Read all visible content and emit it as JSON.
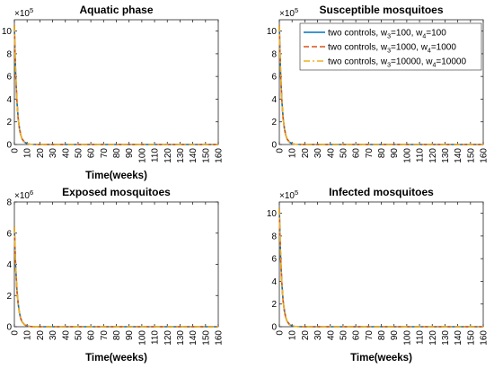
{
  "chart_data": [
    {
      "type": "line",
      "title": "Aquatic phase",
      "xlabel": "Time(weeks)",
      "ylabel": "",
      "xlim": [
        0,
        160
      ],
      "ylim": [
        0,
        11
      ],
      "y_exponent_label": "×10",
      "y_exponent_power": "5",
      "xticks": [
        0,
        10,
        20,
        30,
        40,
        50,
        60,
        70,
        80,
        90,
        100,
        110,
        120,
        130,
        140,
        150,
        160
      ],
      "yticks": [
        0,
        2,
        4,
        6,
        8,
        10
      ],
      "grid": false,
      "legend": null,
      "series": [
        {
          "color": "#0072BD",
          "dash": "solid",
          "x": [
            0,
            0.5,
            1,
            2,
            3,
            4,
            5,
            6,
            8,
            10,
            12,
            15,
            20,
            30,
            160
          ],
          "y": [
            10.5,
            8.2,
            6.3,
            3.8,
            2.3,
            1.4,
            0.85,
            0.5,
            0.2,
            0.08,
            0.03,
            0.01,
            0,
            0,
            0
          ]
        },
        {
          "color": "#D95319",
          "dash": "dashed",
          "x": [
            0,
            0.5,
            1,
            2,
            3,
            4,
            5,
            6,
            8,
            10,
            12,
            15,
            20,
            30,
            160
          ],
          "y": [
            10.5,
            8.2,
            6.3,
            3.8,
            2.3,
            1.4,
            0.85,
            0.5,
            0.2,
            0.08,
            0.03,
            0.01,
            0,
            0,
            0
          ]
        },
        {
          "color": "#EDB120",
          "dash": "dashdot",
          "x": [
            0,
            0.5,
            1,
            2,
            3,
            4,
            5,
            6,
            8,
            10,
            12,
            15,
            20,
            30,
            160
          ],
          "y": [
            10.5,
            8.2,
            6.3,
            3.8,
            2.3,
            1.4,
            0.85,
            0.5,
            0.2,
            0.08,
            0.03,
            0.01,
            0,
            0,
            0
          ]
        }
      ]
    },
    {
      "type": "line",
      "title": "Susceptible mosquitoes",
      "xlabel": "",
      "ylabel": "",
      "xlim": [
        0,
        160
      ],
      "ylim": [
        0,
        11
      ],
      "y_exponent_label": "×10",
      "y_exponent_power": "5",
      "xticks": [
        0,
        10,
        20,
        30,
        40,
        50,
        60,
        70,
        80,
        90,
        100,
        110,
        120,
        130,
        140,
        150,
        160
      ],
      "yticks": [
        0,
        2,
        4,
        6,
        8,
        10
      ],
      "grid": false,
      "legend": "top-right",
      "series": [
        {
          "name": "two controls, w",
          "name_sub1": "3",
          "name_mid": "=100, w",
          "name_sub2": "4",
          "name_end": "=100",
          "color": "#0072BD",
          "dash": "solid",
          "x": [
            0,
            0.5,
            1,
            2,
            3,
            4,
            5,
            6,
            8,
            10,
            12,
            15,
            20,
            30,
            160
          ],
          "y": [
            10.5,
            8.2,
            6.3,
            3.8,
            2.3,
            1.4,
            0.85,
            0.5,
            0.2,
            0.08,
            0.03,
            0.01,
            0,
            0,
            0
          ]
        },
        {
          "name": "two controls, w",
          "name_sub1": "3",
          "name_mid": "=1000, w",
          "name_sub2": "4",
          "name_end": "=1000",
          "color": "#D95319",
          "dash": "dashed",
          "x": [
            0,
            0.5,
            1,
            2,
            3,
            4,
            5,
            6,
            8,
            10,
            12,
            15,
            20,
            30,
            160
          ],
          "y": [
            10.5,
            8.2,
            6.3,
            3.8,
            2.3,
            1.4,
            0.85,
            0.5,
            0.2,
            0.08,
            0.03,
            0.01,
            0,
            0,
            0
          ]
        },
        {
          "name": "two controls, w",
          "name_sub1": "3",
          "name_mid": "=10000, w",
          "name_sub2": "4",
          "name_end": "=10000",
          "color": "#EDB120",
          "dash": "dashdot",
          "x": [
            0,
            0.5,
            1,
            2,
            3,
            4,
            5,
            6,
            8,
            10,
            12,
            15,
            20,
            30,
            160
          ],
          "y": [
            10.5,
            8.2,
            6.3,
            3.8,
            2.3,
            1.4,
            0.85,
            0.5,
            0.2,
            0.08,
            0.03,
            0.01,
            0,
            0,
            0
          ]
        }
      ]
    },
    {
      "type": "line",
      "title": "Exposed mosquitoes",
      "xlabel": "Time(weeks)",
      "ylabel": "",
      "xlim": [
        0,
        160
      ],
      "ylim": [
        0,
        8
      ],
      "y_exponent_label": "×10",
      "y_exponent_power": "6",
      "xticks": [
        0,
        10,
        20,
        30,
        40,
        50,
        60,
        70,
        80,
        90,
        100,
        110,
        120,
        130,
        140,
        150,
        160
      ],
      "yticks": [
        0,
        2,
        4,
        6,
        8
      ],
      "grid": false,
      "legend": null,
      "series": [
        {
          "color": "#0072BD",
          "dash": "solid",
          "x": [
            0,
            0.5,
            1,
            2,
            3,
            4,
            5,
            6,
            8,
            10,
            12,
            15,
            20,
            30,
            160
          ],
          "y": [
            6.4,
            5.0,
            3.9,
            2.35,
            1.45,
            0.88,
            0.53,
            0.32,
            0.12,
            0.05,
            0.02,
            0.005,
            0,
            0,
            0
          ]
        },
        {
          "color": "#D95319",
          "dash": "dashed",
          "x": [
            0,
            0.5,
            1,
            2,
            3,
            4,
            5,
            6,
            8,
            10,
            12,
            15,
            20,
            30,
            160
          ],
          "y": [
            6.4,
            5.0,
            3.9,
            2.35,
            1.45,
            0.88,
            0.53,
            0.32,
            0.12,
            0.05,
            0.02,
            0.005,
            0,
            0,
            0
          ]
        },
        {
          "color": "#EDB120",
          "dash": "dashdot",
          "x": [
            0,
            0.5,
            1,
            2,
            3,
            4,
            5,
            6,
            8,
            10,
            12,
            15,
            20,
            30,
            160
          ],
          "y": [
            6.4,
            5.0,
            3.9,
            2.35,
            1.45,
            0.88,
            0.53,
            0.32,
            0.12,
            0.05,
            0.02,
            0.005,
            0,
            0,
            0
          ]
        }
      ]
    },
    {
      "type": "line",
      "title": "Infected mosquitoes",
      "xlabel": "Time(weeks)",
      "ylabel": "",
      "xlim": [
        0,
        160
      ],
      "ylim": [
        0,
        11
      ],
      "y_exponent_label": "×10",
      "y_exponent_power": "5",
      "xticks": [
        0,
        10,
        20,
        30,
        40,
        50,
        60,
        70,
        80,
        90,
        100,
        110,
        120,
        130,
        140,
        150,
        160
      ],
      "yticks": [
        0,
        2,
        4,
        6,
        8,
        10
      ],
      "grid": false,
      "legend": null,
      "series": [
        {
          "color": "#0072BD",
          "dash": "solid",
          "x": [
            0,
            0.5,
            1,
            2,
            3,
            4,
            5,
            6,
            8,
            10,
            12,
            15,
            20,
            30,
            160
          ],
          "y": [
            10.4,
            8.1,
            6.2,
            3.75,
            2.25,
            1.38,
            0.83,
            0.5,
            0.19,
            0.07,
            0.03,
            0.01,
            0,
            0,
            0
          ]
        },
        {
          "color": "#D95319",
          "dash": "dashed",
          "x": [
            0,
            0.5,
            1,
            2,
            3,
            4,
            5,
            6,
            8,
            10,
            12,
            15,
            20,
            30,
            160
          ],
          "y": [
            10.4,
            8.1,
            6.2,
            3.75,
            2.25,
            1.38,
            0.83,
            0.5,
            0.19,
            0.07,
            0.03,
            0.01,
            0,
            0,
            0
          ]
        },
        {
          "color": "#EDB120",
          "dash": "dashdot",
          "x": [
            0,
            0.5,
            1,
            2,
            3,
            4,
            5,
            6,
            8,
            10,
            12,
            15,
            20,
            30,
            160
          ],
          "y": [
            10.4,
            8.1,
            6.2,
            3.75,
            2.25,
            1.38,
            0.83,
            0.5,
            0.19,
            0.07,
            0.03,
            0.01,
            0,
            0,
            0
          ]
        }
      ]
    }
  ]
}
